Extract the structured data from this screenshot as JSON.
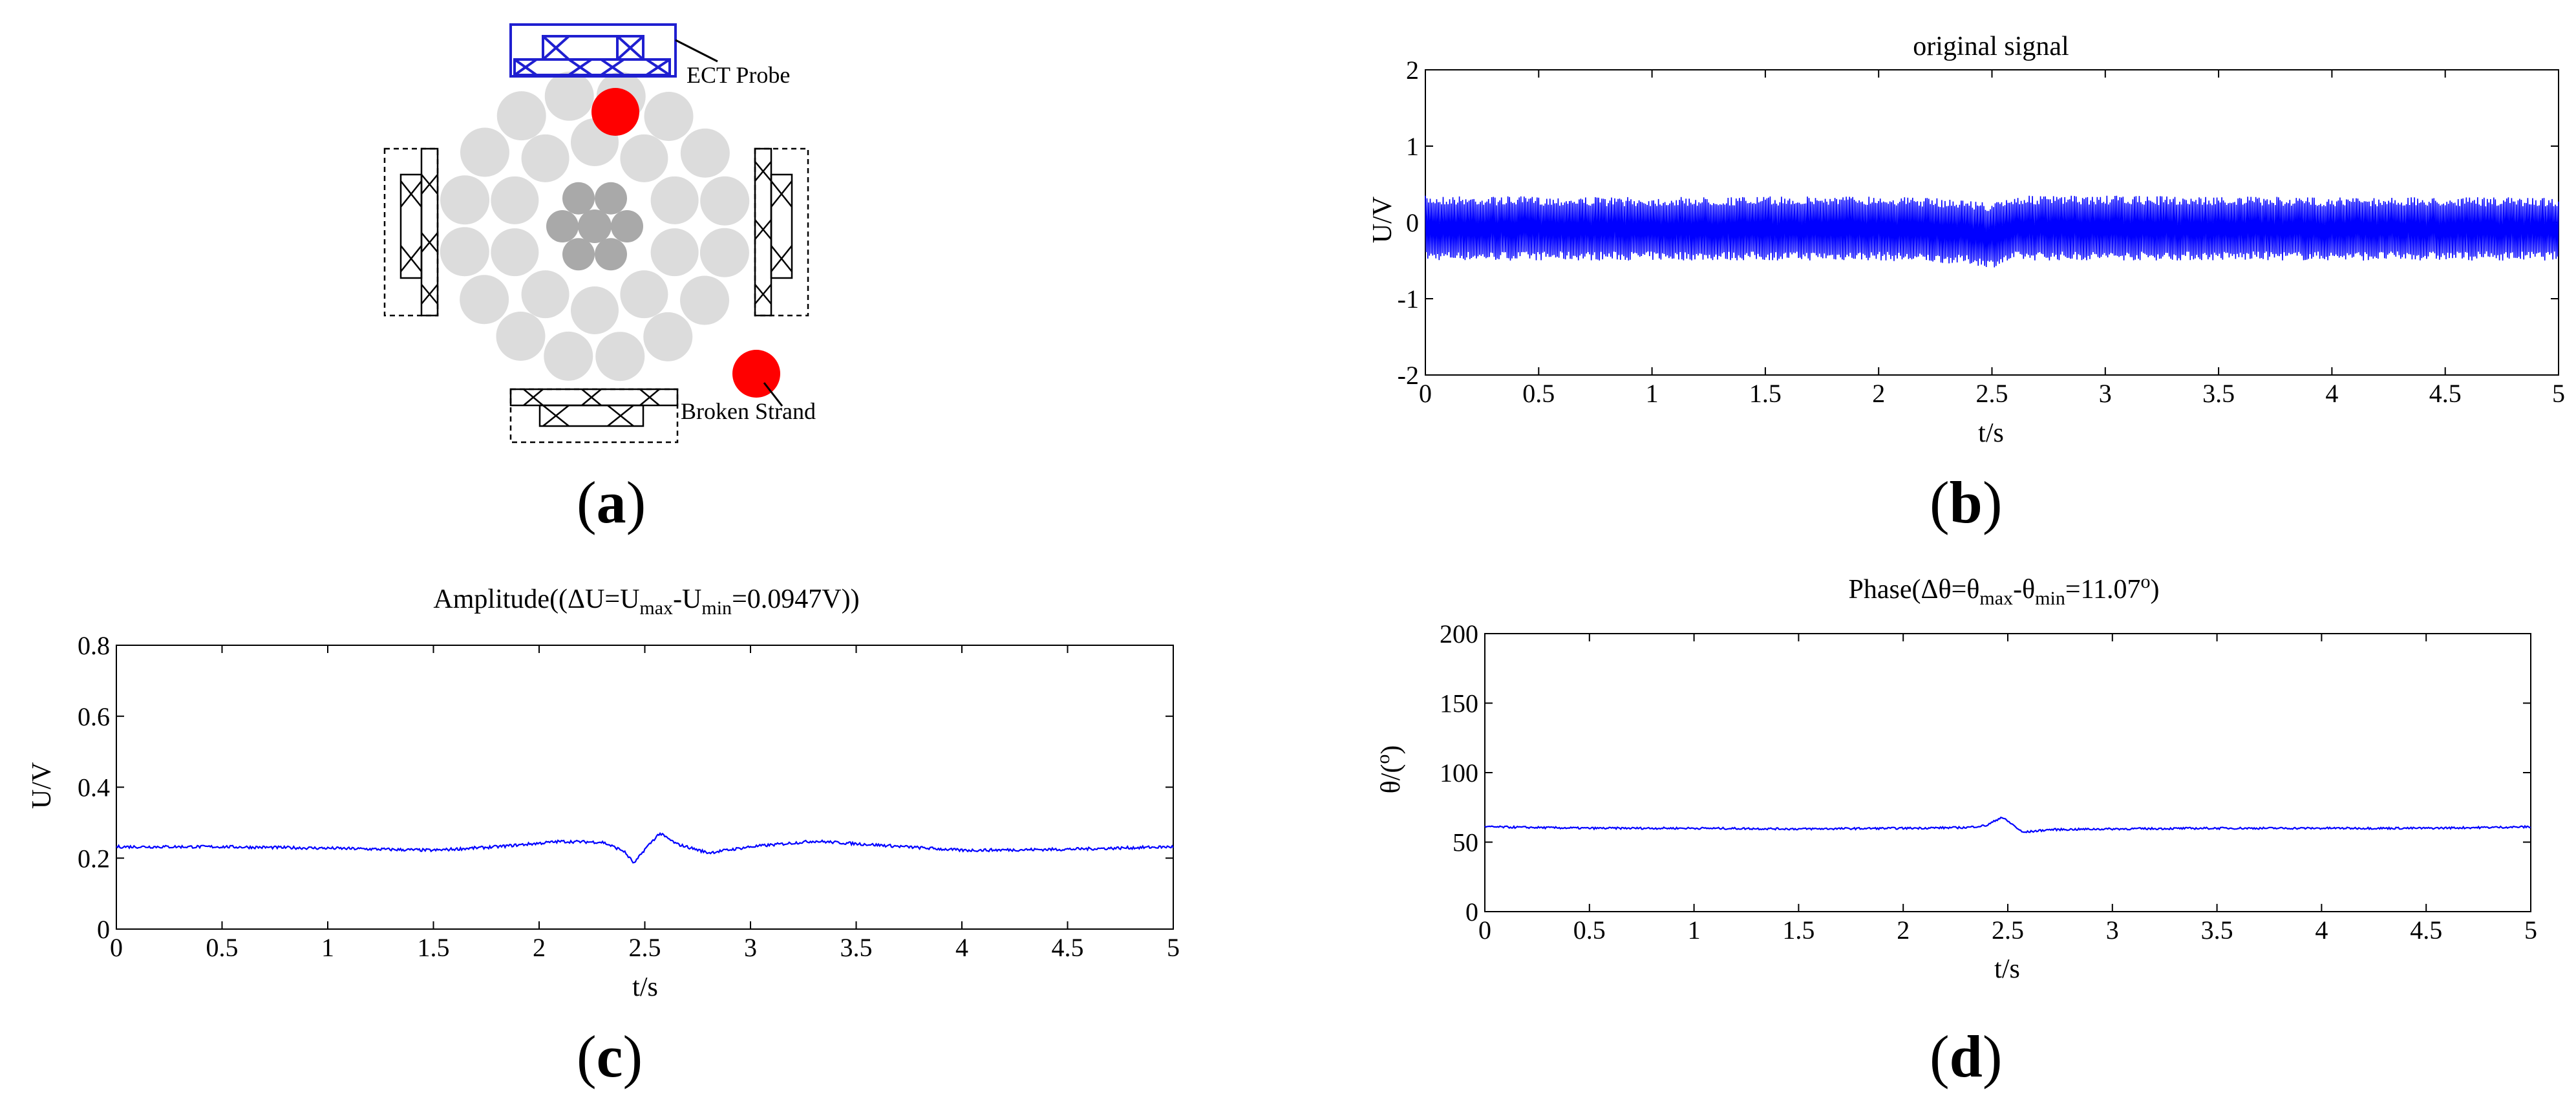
{
  "diagram": {
    "probe_label": "ECT Probe",
    "defect_label": "Broken Strand",
    "colors": {
      "active_probe": "#1f1fd0",
      "defect": "#ff0000",
      "strand_outer": "#dcdcdc",
      "strand_core": "#a9a9a9",
      "inactive_probe": "#000000"
    }
  },
  "panel_labels": {
    "a": "a",
    "b": "b",
    "c": "c",
    "d": "d"
  },
  "chart_data": [
    {
      "id": "b",
      "type": "line",
      "title": "original signal",
      "xlabel": "t/s",
      "ylabel": "U/V",
      "xlim": [
        0,
        5
      ],
      "ylim": [
        -2,
        2
      ],
      "xticks": [
        "0",
        "0.5",
        "1",
        "1.5",
        "2",
        "2.5",
        "3",
        "3.5",
        "4",
        "4.5",
        "5"
      ],
      "yticks": [
        "-2",
        "-1",
        "0",
        "1",
        "2"
      ],
      "grid": false,
      "series": [
        {
          "color": "#0000ff",
          "envelope_upper": 0.35,
          "envelope_lower": -0.5,
          "note_center": -0.05,
          "x": [
            0,
            1,
            2,
            2.4,
            2.5,
            2.6,
            3,
            4,
            5
          ],
          "upper": [
            0.35,
            0.33,
            0.35,
            0.3,
            0.25,
            0.35,
            0.35,
            0.33,
            0.33
          ],
          "lower": [
            -0.5,
            -0.5,
            -0.5,
            -0.55,
            -0.6,
            -0.5,
            -0.5,
            -0.5,
            -0.5
          ]
        }
      ]
    },
    {
      "id": "c",
      "type": "line",
      "title_main": "Amplitude((ΔU=U",
      "title_sub1": "max",
      "title_mid": "-U",
      "title_sub2": "min",
      "title_end": "=0.0947V))",
      "xlabel": "t/s",
      "ylabel": "U/V",
      "xlim": [
        0,
        5
      ],
      "ylim": [
        0,
        0.8
      ],
      "xticks": [
        "0",
        "0.5",
        "1",
        "1.5",
        "2",
        "2.5",
        "3",
        "3.5",
        "4",
        "4.5",
        "5"
      ],
      "yticks": [
        "0",
        "0.2",
        "0.4",
        "0.6",
        "0.8"
      ],
      "grid": false,
      "series": [
        {
          "color": "#0000ff",
          "x": [
            0,
            0.5,
            1,
            1.5,
            1.8,
            2.1,
            2.3,
            2.4,
            2.45,
            2.5,
            2.57,
            2.65,
            2.8,
            3.0,
            3.3,
            3.6,
            4.0,
            4.5,
            5.0
          ],
          "y": [
            0.232,
            0.232,
            0.228,
            0.222,
            0.232,
            0.247,
            0.245,
            0.22,
            0.185,
            0.225,
            0.27,
            0.24,
            0.215,
            0.232,
            0.248,
            0.237,
            0.222,
            0.225,
            0.232
          ]
        }
      ]
    },
    {
      "id": "d",
      "type": "line",
      "title_main": "Phase(Δθ=θ",
      "title_sub1": "max",
      "title_mid": "-θ",
      "title_sub2": "min",
      "title_end": "=11.07",
      "title_sup": "o",
      "title_close": ")",
      "xlabel": "t/s",
      "ylabel_main": "θ/(",
      "ylabel_sup": "o",
      "ylabel_close": ")",
      "xlim": [
        0,
        5
      ],
      "ylim": [
        0,
        200
      ],
      "xticks": [
        "0",
        "0.5",
        "1",
        "1.5",
        "2",
        "2.5",
        "3",
        "3.5",
        "4",
        "4.5",
        "5"
      ],
      "yticks": [
        "0",
        "50",
        "100",
        "150",
        "200"
      ],
      "grid": false,
      "series": [
        {
          "color": "#0000ff",
          "x": [
            0,
            0.5,
            1,
            1.5,
            2.0,
            2.3,
            2.4,
            2.47,
            2.52,
            2.57,
            2.7,
            3.0,
            3.5,
            4.0,
            4.5,
            5.0
          ],
          "y": [
            61,
            60,
            60,
            59.5,
            60,
            60.5,
            62,
            68,
            63,
            57,
            59,
            59.5,
            60,
            60,
            60,
            61
          ]
        }
      ]
    }
  ]
}
